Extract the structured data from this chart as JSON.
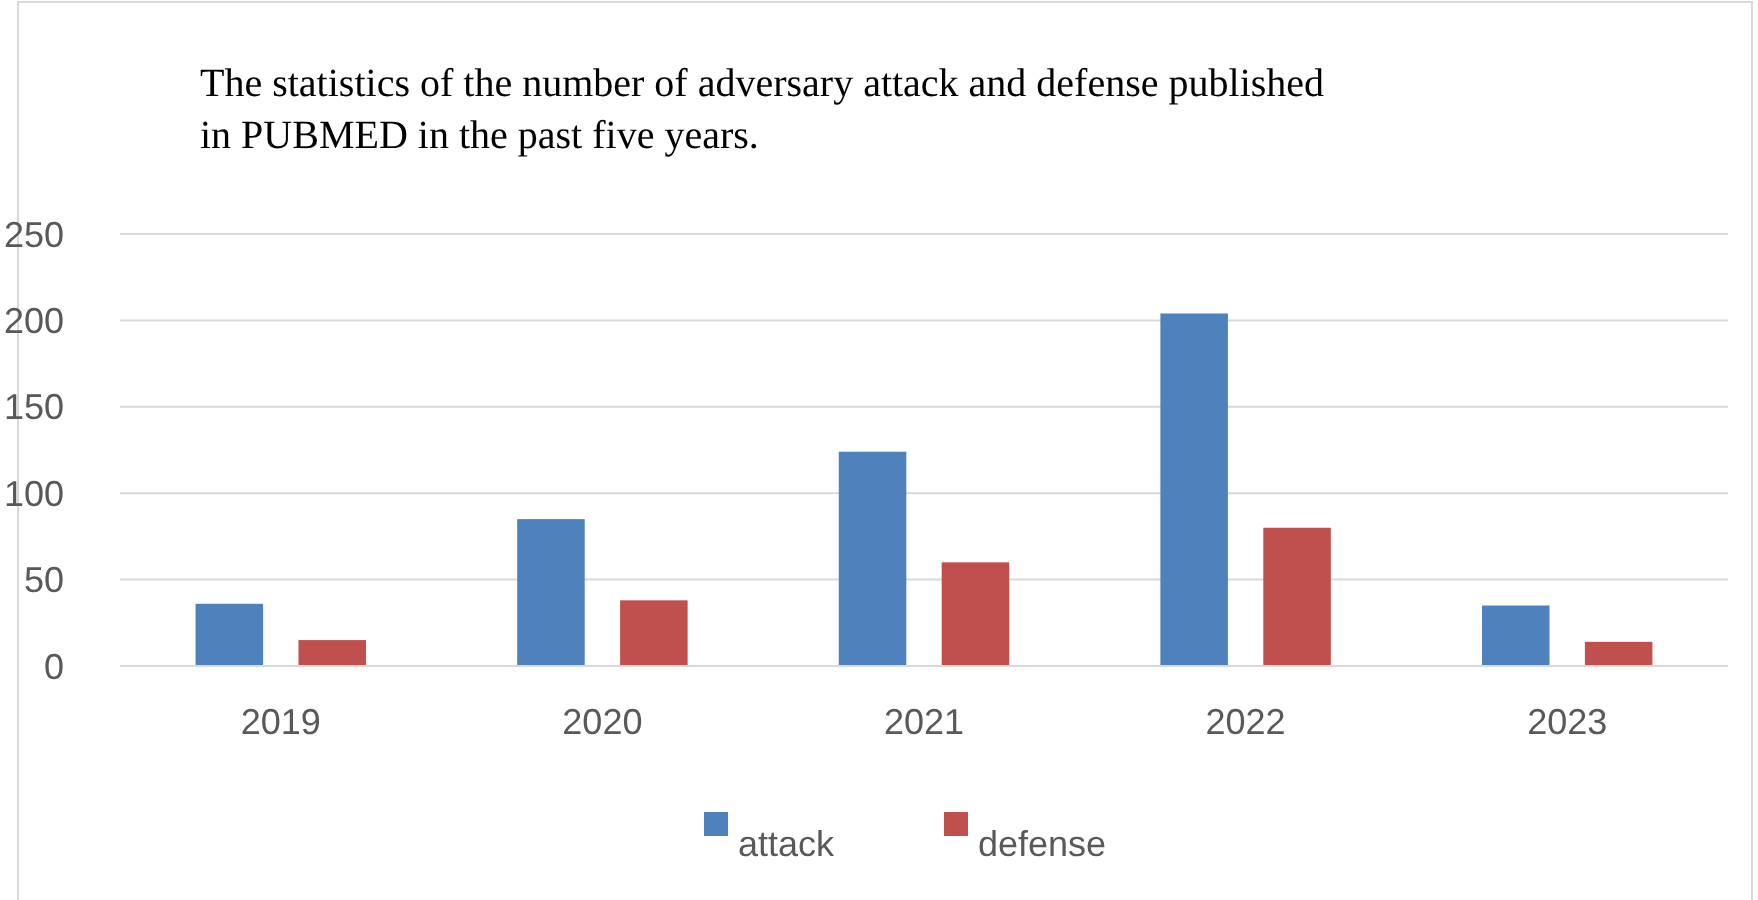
{
  "chart_data": {
    "type": "bar",
    "title": "The statistics of the number of adversary attack and defense published in PUBMED in the past five years.",
    "categories": [
      "2019",
      "2020",
      "2021",
      "2022",
      "2023"
    ],
    "series": [
      {
        "name": "attack",
        "color": "#4f81bd",
        "values": [
          36,
          85,
          124,
          204,
          35
        ]
      },
      {
        "name": "defense",
        "color": "#c0504d",
        "values": [
          15,
          38,
          60,
          80,
          14
        ]
      }
    ],
    "ylim": [
      0,
      250
    ],
    "yticks": [
      0,
      50,
      100,
      150,
      200,
      250
    ],
    "grid": "y",
    "legend": "bottom"
  }
}
